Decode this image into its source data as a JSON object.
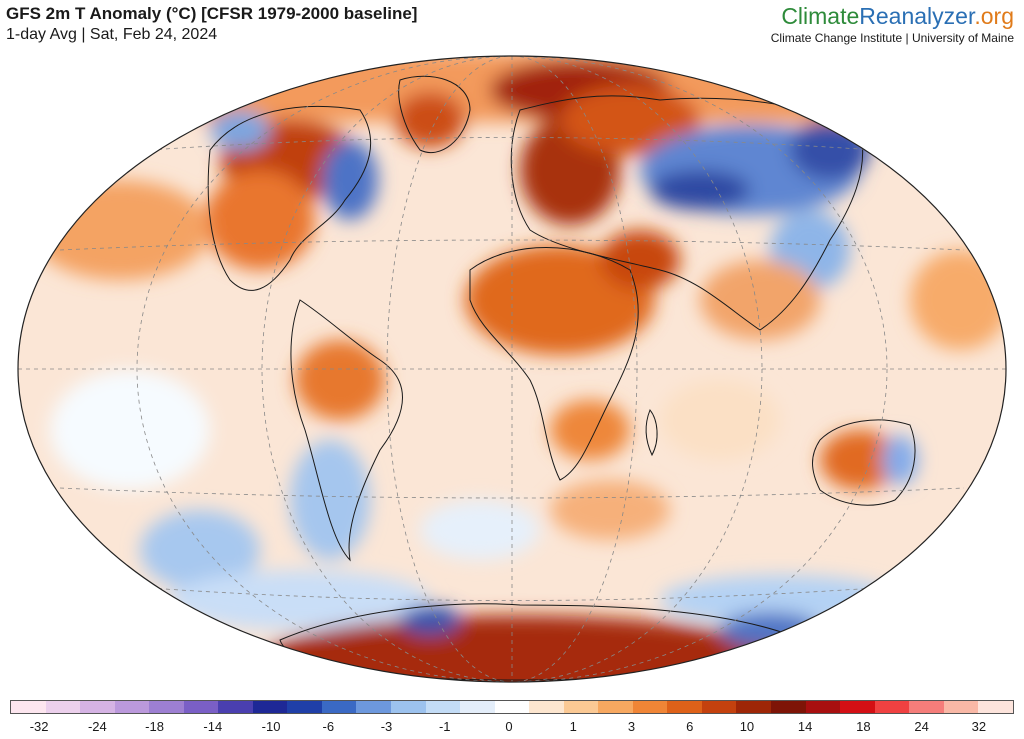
{
  "header": {
    "title": "GFS 2m T Anomaly (°C) [CFSR 1979-2000 baseline]",
    "subtitle": "1-day Avg | Sat, Feb 24, 2024"
  },
  "brand": {
    "logo_part1": "Climate",
    "logo_part2": "Reanalyzer",
    "logo_part3": ".org",
    "tagline": "Climate Change Institute | University of Maine",
    "colors": {
      "climate": "#2e8b3a",
      "reanalyzer": "#2a6fb4",
      "org": "#e07b1a"
    }
  },
  "colorbar": {
    "colors": [
      "#fde6ef",
      "#ecd0ec",
      "#d5b3e4",
      "#bb99dc",
      "#9d7fd2",
      "#7a5fc6",
      "#4a3fb0",
      "#1e2896",
      "#1f3fa8",
      "#3a69c4",
      "#6d98dd",
      "#9cc2ee",
      "#c3dcf6",
      "#e4eefa",
      "#ffffff",
      "#fde6cf",
      "#fbc994",
      "#f7a860",
      "#f08536",
      "#de6119",
      "#c4410e",
      "#9e2607",
      "#7e1407",
      "#a80f0f",
      "#d40f14",
      "#f04141",
      "#f57d7a",
      "#f9b8a6",
      "#fde4dc"
    ],
    "labels": [
      "-32",
      "-24",
      "-18",
      "-14",
      "-10",
      "-6",
      "-3",
      "-1",
      "0",
      "1",
      "3",
      "6",
      "10",
      "14",
      "18",
      "24",
      "32"
    ]
  }
}
